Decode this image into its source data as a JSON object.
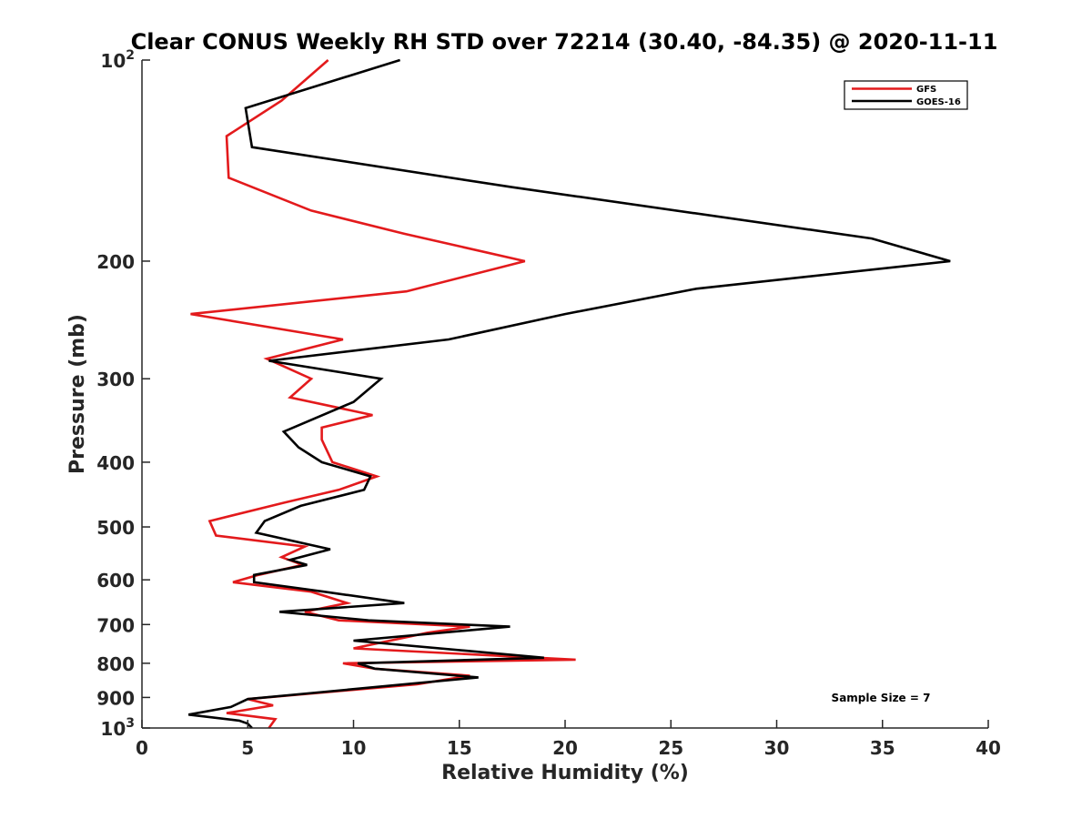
{
  "chart_data": {
    "type": "line",
    "title": "Clear CONUS Weekly RH STD over 72214 (30.40, -84.35) @ 2020-11-11",
    "xlabel": "Relative Humidity (%)",
    "ylabel": "Pressure (mb)",
    "xlim": [
      0,
      40
    ],
    "ylim": [
      100,
      1000
    ],
    "yscale": "log",
    "y_reversed": true,
    "xticks": [
      0,
      5,
      10,
      15,
      20,
      25,
      30,
      35,
      40
    ],
    "xtick_labels": [
      "0",
      "5",
      "10",
      "15",
      "20",
      "25",
      "30",
      "35",
      "40"
    ],
    "yticks": [
      100,
      200,
      300,
      400,
      500,
      600,
      700,
      800,
      900,
      1000
    ],
    "ytick_labels": [
      {
        "base": "10",
        "sup": "2"
      },
      {
        "base": "200",
        "sup": ""
      },
      {
        "base": "300",
        "sup": ""
      },
      {
        "base": "400",
        "sup": ""
      },
      {
        "base": "500",
        "sup": ""
      },
      {
        "base": "600",
        "sup": ""
      },
      {
        "base": "700",
        "sup": ""
      },
      {
        "base": "800",
        "sup": ""
      },
      {
        "base": "900",
        "sup": ""
      },
      {
        "base": "10",
        "sup": "3"
      }
    ],
    "legend": {
      "position": "top-right",
      "entries": [
        "GFS",
        "GOES-16"
      ]
    },
    "annotation": "Sample Size = 7",
    "series": [
      {
        "name": "GFS",
        "color": "#e31a1c",
        "points": [
          [
            8.8,
            100
          ],
          [
            6.6,
            115
          ],
          [
            4.0,
            130
          ],
          [
            4.1,
            150
          ],
          [
            8.0,
            168
          ],
          [
            12.4,
            182
          ],
          [
            18.1,
            200
          ],
          [
            12.5,
            222
          ],
          [
            2.3,
            240
          ],
          [
            9.5,
            262
          ],
          [
            5.9,
            280
          ],
          [
            8.0,
            300
          ],
          [
            7.0,
            320
          ],
          [
            10.9,
            340
          ],
          [
            8.5,
            355
          ],
          [
            8.5,
            370
          ],
          [
            9.0,
            400
          ],
          [
            11.1,
            420
          ],
          [
            9.3,
            440
          ],
          [
            6.7,
            460
          ],
          [
            3.2,
            490
          ],
          [
            3.5,
            515
          ],
          [
            7.7,
            535
          ],
          [
            6.6,
            555
          ],
          [
            7.6,
            570
          ],
          [
            5.5,
            590
          ],
          [
            4.3,
            605
          ],
          [
            8.0,
            625
          ],
          [
            9.7,
            650
          ],
          [
            7.7,
            670
          ],
          [
            9.3,
            690
          ],
          [
            15.5,
            705
          ],
          [
            13.5,
            720
          ],
          [
            10.0,
            760
          ],
          [
            20.5,
            790
          ],
          [
            9.5,
            800
          ],
          [
            11.0,
            815
          ],
          [
            15.5,
            835
          ],
          [
            13.0,
            860
          ],
          [
            5.0,
            905
          ],
          [
            6.2,
            925
          ],
          [
            4.0,
            950
          ],
          [
            6.3,
            970
          ],
          [
            6.0,
            1000
          ]
        ]
      },
      {
        "name": "GOES-16",
        "color": "#000000",
        "points": [
          [
            12.2,
            100
          ],
          [
            4.9,
            118
          ],
          [
            5.2,
            135
          ],
          [
            17.5,
            155
          ],
          [
            34.5,
            185
          ],
          [
            38.2,
            200
          ],
          [
            26.2,
            220
          ],
          [
            20.0,
            240
          ],
          [
            14.5,
            262
          ],
          [
            6.0,
            282
          ],
          [
            11.3,
            300
          ],
          [
            10.0,
            325
          ],
          [
            6.7,
            360
          ],
          [
            7.4,
            380
          ],
          [
            8.5,
            400
          ],
          [
            10.8,
            420
          ],
          [
            10.5,
            440
          ],
          [
            7.5,
            465
          ],
          [
            5.8,
            490
          ],
          [
            5.4,
            510
          ],
          [
            8.9,
            540
          ],
          [
            7.0,
            560
          ],
          [
            7.8,
            570
          ],
          [
            5.3,
            590
          ],
          [
            5.3,
            605
          ],
          [
            8.6,
            625
          ],
          [
            12.4,
            650
          ],
          [
            6.5,
            670
          ],
          [
            10.7,
            690
          ],
          [
            17.4,
            705
          ],
          [
            10.0,
            740
          ],
          [
            19.0,
            785
          ],
          [
            10.2,
            800
          ],
          [
            11.0,
            815
          ],
          [
            15.9,
            840
          ],
          [
            5.0,
            905
          ],
          [
            4.2,
            930
          ],
          [
            2.2,
            955
          ],
          [
            4.6,
            975
          ],
          [
            5.0,
            985
          ],
          [
            5.2,
            1000
          ]
        ]
      }
    ]
  }
}
